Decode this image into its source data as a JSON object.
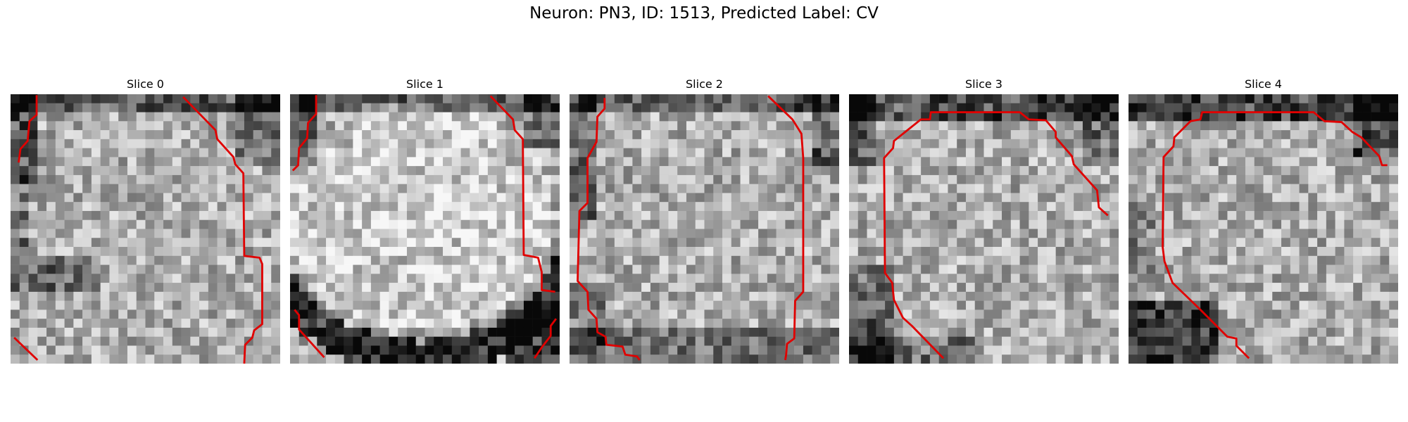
{
  "figure": {
    "title": "Neuron: PN3, ID: 1513, Predicted Label: CV"
  },
  "panels": [
    {
      "title": "Slice 0",
      "contour_color": "#e00000"
    },
    {
      "title": "Slice 1",
      "contour_color": "#e00000"
    },
    {
      "title": "Slice 2",
      "contour_color": "#e00000"
    },
    {
      "title": "Slice 3",
      "contour_color": "#e00000"
    },
    {
      "title": "Slice 4",
      "contour_color": "#e00000"
    }
  ]
}
